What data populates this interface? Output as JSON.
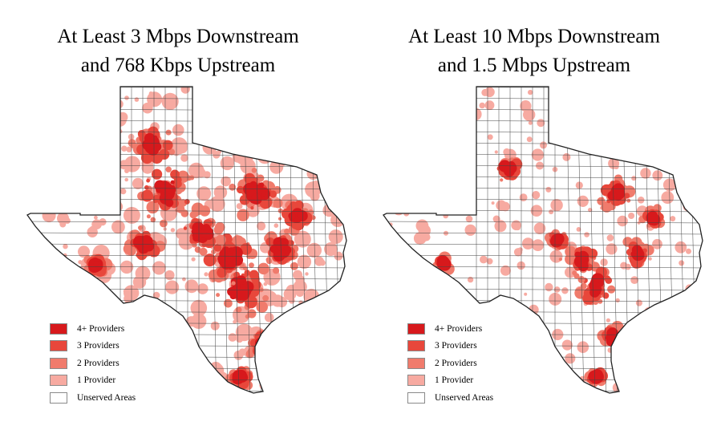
{
  "maps": [
    {
      "title_line1": "At Least 3 Mbps Downstream",
      "title_line2": "and 768 Kbps Upstream",
      "coverage_level": "high"
    },
    {
      "title_line1": "At Least 10 Mbps Downstream",
      "title_line2": "and 1.5 Mbps Upstream",
      "coverage_level": "moderate"
    }
  ],
  "legend": {
    "items": [
      {
        "label": "4+ Providers",
        "color": "#d7191c"
      },
      {
        "label": "3 Providers",
        "color": "#e8473b"
      },
      {
        "label": "2 Providers",
        "color": "#f07b6c"
      },
      {
        "label": "1 Provider",
        "color": "#f7aaa1"
      },
      {
        "label": "Unserved Areas",
        "color": "#ffffff"
      }
    ]
  },
  "colors": {
    "boundary": "#222222",
    "county_line": "#444444"
  }
}
